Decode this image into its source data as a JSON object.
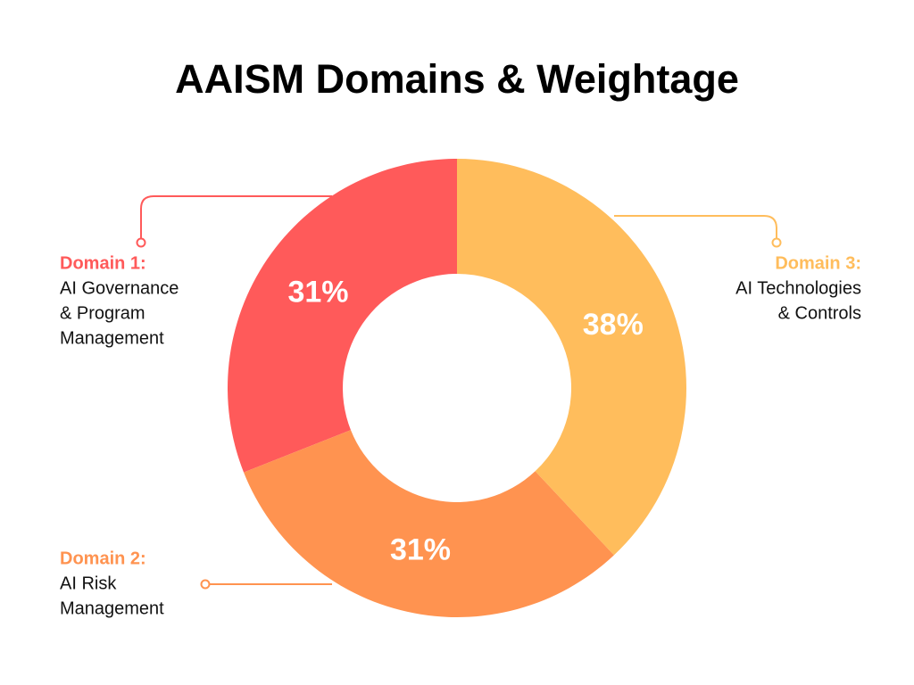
{
  "chart_data": {
    "type": "donut",
    "title": "AAISM Domains & Weightage",
    "categories": [
      "Domain 1:",
      "Domain 2:",
      "Domain 3:"
    ],
    "descriptions": [
      [
        "AI Governance",
        "& Program",
        "Management"
      ],
      [
        "AI Risk",
        "Management"
      ],
      [
        "AI Technologies",
        "& Controls"
      ]
    ],
    "values": [
      31,
      31,
      38
    ],
    "value_labels": [
      "31%",
      "31%",
      "38%"
    ],
    "colors": [
      "#ff5a5a",
      "#ff9350",
      "#ffbd5c"
    ],
    "direction": "counterclockwise"
  }
}
